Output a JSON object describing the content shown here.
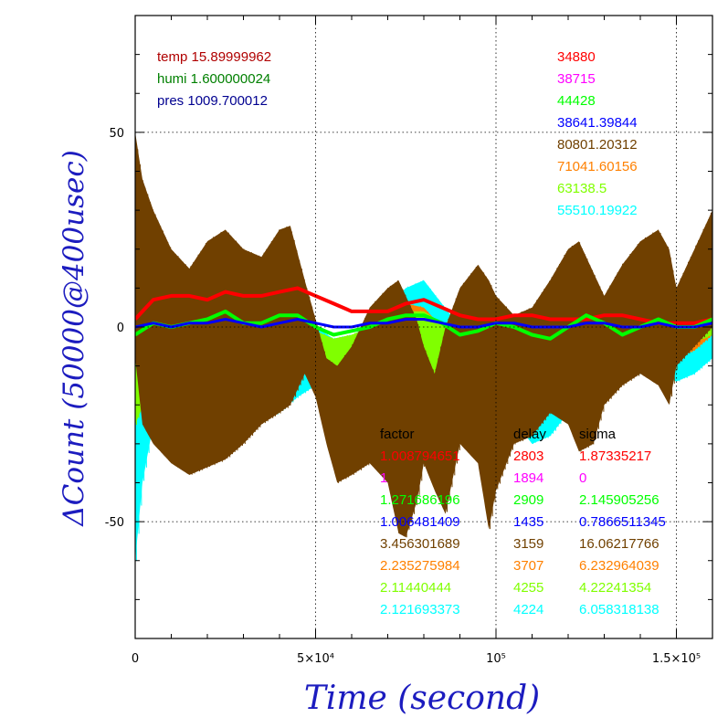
{
  "chart_data": {
    "type": "line",
    "xlabel": "Time (second)",
    "ylabel": "ΔCount (50000@400usec)",
    "xlim": [
      0,
      160000
    ],
    "ylim": [
      -80,
      80
    ],
    "x_ticks": [
      {
        "value": 0,
        "label": "0"
      },
      {
        "value": 50000,
        "label": "5×10⁴"
      },
      {
        "value": 100000,
        "label": "10⁵"
      },
      {
        "value": 150000,
        "label": "1.5×10⁵"
      }
    ],
    "y_ticks": [
      {
        "value": 50,
        "label": "50"
      },
      {
        "value": 0,
        "label": "0"
      },
      {
        "value": -50,
        "label": "-50"
      }
    ],
    "grid": "dotted",
    "env": [
      {
        "label": "temp",
        "value": "15.89999962",
        "color": "#b00000"
      },
      {
        "label": "humi",
        "value": "1.600000024",
        "color": "#008000"
      },
      {
        "label": "pres",
        "value": "1009.700012",
        "color": "#000090"
      }
    ],
    "count_labels": [
      {
        "value": "34880",
        "color": "#ff0000"
      },
      {
        "value": "38715",
        "color": "#ff00ff"
      },
      {
        "value": "44428",
        "color": "#00ff00"
      },
      {
        "value": "38641.39844",
        "color": "#0000ff"
      },
      {
        "value": "80801.20312",
        "color": "#704000"
      },
      {
        "value": "71041.60156",
        "color": "#ff8000"
      },
      {
        "value": "63138.5",
        "color": "#80ff00"
      },
      {
        "value": "55510.19922",
        "color": "#00ffff"
      }
    ],
    "table_headers": [
      "factor",
      "delay",
      "sigma"
    ],
    "table_rows": [
      {
        "factor": "1.008794651",
        "delay": "2803",
        "sigma": "1.87335217",
        "color": "#ff0000"
      },
      {
        "factor": "1",
        "delay": "1894",
        "sigma": "0",
        "color": "#ff00ff"
      },
      {
        "factor": "1.271686196",
        "delay": "2909",
        "sigma": "2.145905256",
        "color": "#00ff00"
      },
      {
        "factor": "1.006481409",
        "delay": "1435",
        "sigma": "0.7866511345",
        "color": "#0000ff"
      },
      {
        "factor": "3.456301689",
        "delay": "3159",
        "sigma": "16.06217766",
        "color": "#704000"
      },
      {
        "factor": "2.235275984",
        "delay": "3707",
        "sigma": "6.232964039",
        "color": "#ff8000"
      },
      {
        "factor": "2.11440444",
        "delay": "4255",
        "sigma": "4.22241354",
        "color": "#80ff00"
      },
      {
        "factor": "2.121693373",
        "delay": "4224",
        "sigma": "6.058318138",
        "color": "#00ffff"
      }
    ],
    "series": [
      {
        "color": "#00ffff",
        "kind": "band",
        "x": [
          0,
          2000,
          5000,
          10000,
          15000,
          20000,
          25000,
          30000,
          35000,
          40000,
          45000,
          50000,
          55000,
          60000,
          65000,
          70000,
          75000,
          80000,
          85000,
          90000,
          95000,
          100000,
          105000,
          110000,
          115000,
          120000,
          125000,
          130000,
          135000,
          140000,
          145000,
          150000,
          155000,
          160000
        ],
        "hi": [
          -15,
          -5,
          3,
          2,
          0,
          3,
          4,
          6,
          5,
          3,
          2,
          0,
          -3,
          -2,
          0,
          5,
          10,
          12,
          6,
          0,
          5,
          5,
          3,
          2,
          4,
          6,
          8,
          5,
          2,
          4,
          8,
          6,
          3,
          5
        ],
        "lo": [
          -60,
          -40,
          -25,
          -28,
          -27,
          -26,
          -26,
          -25,
          -24,
          -22,
          -18,
          -15,
          -15,
          -12,
          -15,
          -22,
          -25,
          -22,
          -15,
          -10,
          -12,
          -18,
          -24,
          -30,
          -28,
          -22,
          -18,
          -16,
          -14,
          -12,
          -12,
          -14,
          -12,
          -8
        ]
      },
      {
        "color": "#ff8000",
        "kind": "band",
        "x": [
          0,
          5000,
          10000,
          15000,
          20000,
          25000,
          30000,
          35000,
          40000,
          45000,
          50000,
          55000,
          60000,
          65000,
          70000,
          75000,
          80000,
          85000,
          90000,
          95000,
          100000,
          105000,
          110000,
          115000,
          120000,
          125000,
          130000,
          135000,
          140000,
          145000,
          150000,
          155000,
          160000
        ],
        "hi": [
          -3,
          0,
          -2,
          -1,
          1,
          2,
          0,
          1,
          2,
          0,
          -3,
          -4,
          -3,
          0,
          3,
          6,
          5,
          0,
          3,
          3,
          0,
          -1,
          0,
          3,
          4,
          1,
          -1,
          1,
          3,
          4,
          3,
          5,
          12
        ],
        "lo": [
          -14,
          -16,
          -20,
          -18,
          -16,
          -16,
          -16,
          -12,
          -10,
          -8,
          -10,
          -12,
          -12,
          -15,
          -20,
          -22,
          -20,
          -14,
          -10,
          -9,
          -14,
          -20,
          -22,
          -20,
          -15,
          -12,
          -10,
          -8,
          -6,
          -8,
          -8,
          -6,
          -2
        ]
      },
      {
        "color": "#80ff00",
        "kind": "band",
        "x": [
          0,
          5000,
          10000,
          15000,
          20000,
          25000,
          30000,
          35000,
          40000,
          45000,
          50000,
          55000,
          60000,
          65000,
          70000,
          75000,
          80000,
          85000,
          90000,
          95000,
          100000,
          105000,
          110000,
          115000,
          120000,
          125000,
          130000,
          135000,
          140000,
          145000,
          150000,
          155000,
          160000
        ],
        "hi": [
          -3,
          1,
          0,
          0,
          2,
          3,
          1,
          1,
          2,
          1,
          -1,
          -3,
          -2,
          0,
          2,
          4,
          4,
          1,
          2,
          3,
          1,
          -1,
          0,
          2,
          3,
          1,
          0,
          1,
          2,
          3,
          2,
          3,
          6
        ],
        "lo": [
          -25,
          -14,
          -12,
          -12,
          -10,
          -10,
          -10,
          -9,
          -8,
          -6,
          -8,
          -10,
          -10,
          -12,
          -15,
          -16,
          -14,
          -10,
          -6,
          -6,
          -10,
          -14,
          -15,
          -14,
          -10,
          -9,
          -8,
          -6,
          -5,
          -6,
          -6,
          -4,
          -2
        ]
      },
      {
        "color": "#704000",
        "kind": "band",
        "x": [
          0,
          2000,
          5000,
          10000,
          15000,
          20000,
          25000,
          30000,
          35000,
          40000,
          43000,
          47000,
          50000,
          53000,
          56000,
          60000,
          65000,
          70000,
          73000,
          75000,
          78000,
          80000,
          83000,
          86000,
          90000,
          95000,
          98000,
          100000,
          105000,
          110000,
          115000,
          120000,
          123000,
          127000,
          130000,
          135000,
          140000,
          145000,
          148000,
          150000,
          155000,
          160000
        ],
        "hi": [
          50,
          38,
          30,
          20,
          15,
          22,
          25,
          20,
          18,
          25,
          26,
          12,
          2,
          -8,
          -10,
          -5,
          5,
          10,
          12,
          8,
          2,
          -5,
          -12,
          0,
          10,
          16,
          12,
          8,
          3,
          5,
          12,
          20,
          22,
          14,
          8,
          16,
          22,
          25,
          20,
          10,
          20,
          30
        ],
        "lo": [
          -8,
          -25,
          -30,
          -35,
          -38,
          -36,
          -34,
          -30,
          -25,
          -22,
          -20,
          -12,
          -18,
          -30,
          -40,
          -38,
          -35,
          -40,
          -53,
          -54,
          -45,
          -35,
          -42,
          -48,
          -30,
          -35,
          -52,
          -42,
          -30,
          -28,
          -22,
          -25,
          -32,
          -30,
          -20,
          -15,
          -12,
          -15,
          -20,
          -10,
          -5,
          0
        ]
      },
      {
        "color": "#ff0000",
        "kind": "line",
        "x": [
          0,
          5000,
          10000,
          15000,
          20000,
          25000,
          30000,
          35000,
          40000,
          45000,
          50000,
          55000,
          60000,
          65000,
          70000,
          75000,
          80000,
          85000,
          90000,
          95000,
          100000,
          105000,
          110000,
          115000,
          120000,
          125000,
          130000,
          135000,
          140000,
          145000,
          150000,
          155000,
          160000
        ],
        "y": [
          2,
          7,
          8,
          8,
          7,
          9,
          8,
          8,
          9,
          10,
          8,
          6,
          4,
          4,
          4,
          6,
          7,
          5,
          3,
          2,
          2,
          3,
          3,
          2,
          2,
          2,
          3,
          3,
          2,
          1,
          1,
          1,
          2
        ]
      },
      {
        "color": "#00ff00",
        "kind": "line",
        "x": [
          0,
          5000,
          10000,
          15000,
          20000,
          25000,
          30000,
          35000,
          40000,
          45000,
          50000,
          55000,
          60000,
          65000,
          70000,
          75000,
          80000,
          85000,
          90000,
          95000,
          100000,
          105000,
          110000,
          115000,
          120000,
          125000,
          130000,
          135000,
          140000,
          145000,
          150000,
          155000,
          160000
        ],
        "y": [
          -2,
          1,
          0,
          1,
          2,
          4,
          1,
          1,
          3,
          3,
          0,
          -2,
          -1,
          0,
          2,
          3,
          3,
          1,
          -2,
          -1,
          1,
          0,
          -2,
          -3,
          0,
          3,
          1,
          -2,
          0,
          2,
          0,
          0,
          2
        ]
      },
      {
        "color": "#0000ff",
        "kind": "line",
        "x": [
          0,
          5000,
          10000,
          15000,
          20000,
          25000,
          30000,
          35000,
          40000,
          45000,
          50000,
          55000,
          60000,
          65000,
          70000,
          75000,
          80000,
          85000,
          90000,
          95000,
          100000,
          105000,
          110000,
          115000,
          120000,
          125000,
          130000,
          135000,
          140000,
          145000,
          150000,
          155000,
          160000
        ],
        "y": [
          0,
          1,
          0,
          1,
          1,
          2,
          1,
          0,
          1,
          2,
          1,
          0,
          0,
          1,
          1,
          2,
          2,
          1,
          0,
          0,
          1,
          1,
          0,
          0,
          0,
          1,
          1,
          0,
          0,
          1,
          0,
          0,
          1
        ]
      }
    ]
  }
}
